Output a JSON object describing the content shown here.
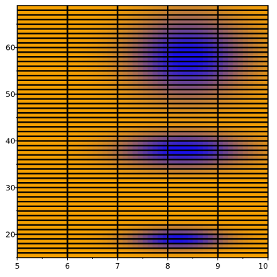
{
  "chart_data": {
    "type": "heatmap",
    "title": "",
    "xlabel": "",
    "ylabel": "",
    "xlim": [
      5,
      10
    ],
    "ylim": [
      15,
      69
    ],
    "x_ticks": [
      {
        "value": 5,
        "label": "5"
      },
      {
        "value": 6,
        "label": "6"
      },
      {
        "value": 7,
        "label": "7"
      },
      {
        "value": 8,
        "label": "8"
      },
      {
        "value": 9,
        "label": "9"
      },
      {
        "value": 10,
        "label": "10"
      }
    ],
    "y_ticks": [
      {
        "value": 20,
        "label": "20"
      },
      {
        "value": 30,
        "label": "30"
      },
      {
        "value": 40,
        "label": "40"
      },
      {
        "value": 50,
        "label": "50"
      },
      {
        "value": 60,
        "label": "60"
      }
    ],
    "x_grid_lines": [
      6,
      7,
      8,
      9
    ],
    "y_grid_step": 1,
    "grid": true,
    "color_low": "#f5a000",
    "color_high": "#1a10e6",
    "grid_color": "#000000",
    "axis_color": "#000000",
    "blue_regions": [
      {
        "x_center": 8.4,
        "y_center": 58,
        "x_spread": 1.1,
        "y_spread": 8
      },
      {
        "x_center": 8.3,
        "y_center": 38,
        "x_spread": 1.2,
        "y_spread": 3.5
      },
      {
        "x_center": 8.2,
        "y_center": 19,
        "x_spread": 0.9,
        "y_spread": 2
      }
    ]
  }
}
